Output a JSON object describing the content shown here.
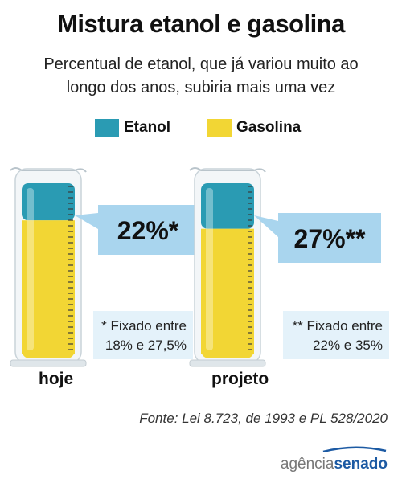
{
  "title": "Mistura etanol e gasolina",
  "subtitle_line1": "Percentual de etanol, que já variou muito ao",
  "subtitle_line2": "longo dos anos, subiria mais uma vez",
  "legend": [
    {
      "label": "Etanol",
      "color": "#2a9bb3"
    },
    {
      "label": "Gasolina",
      "color": "#f2d634"
    }
  ],
  "colors": {
    "etanol": "#2a9bb3",
    "gasolina": "#f2d634",
    "callout": "#a9d5ee",
    "note_box": "#e4f2fa"
  },
  "chart_data": {
    "type": "bar",
    "stacked": true,
    "categories": [
      "hoje",
      "projeto"
    ],
    "series": [
      {
        "name": "Etanol",
        "values": [
          22,
          27
        ]
      },
      {
        "name": "Gasolina",
        "values": [
          78,
          73
        ]
      }
    ],
    "ylim": [
      0,
      100
    ],
    "value_labels": [
      "22%*",
      "27%**"
    ],
    "notes": [
      {
        "line1": "* Fixado entre",
        "line2": "18% e 27,5%"
      },
      {
        "line1": "** Fixado entre",
        "line2": "22% e 35%"
      }
    ]
  },
  "source": "Fonte: Lei 8.723, de 1993 e PL 528/2020",
  "logo": {
    "part1": "agência",
    "part2": "senado",
    "color": "#1c5aa3"
  }
}
